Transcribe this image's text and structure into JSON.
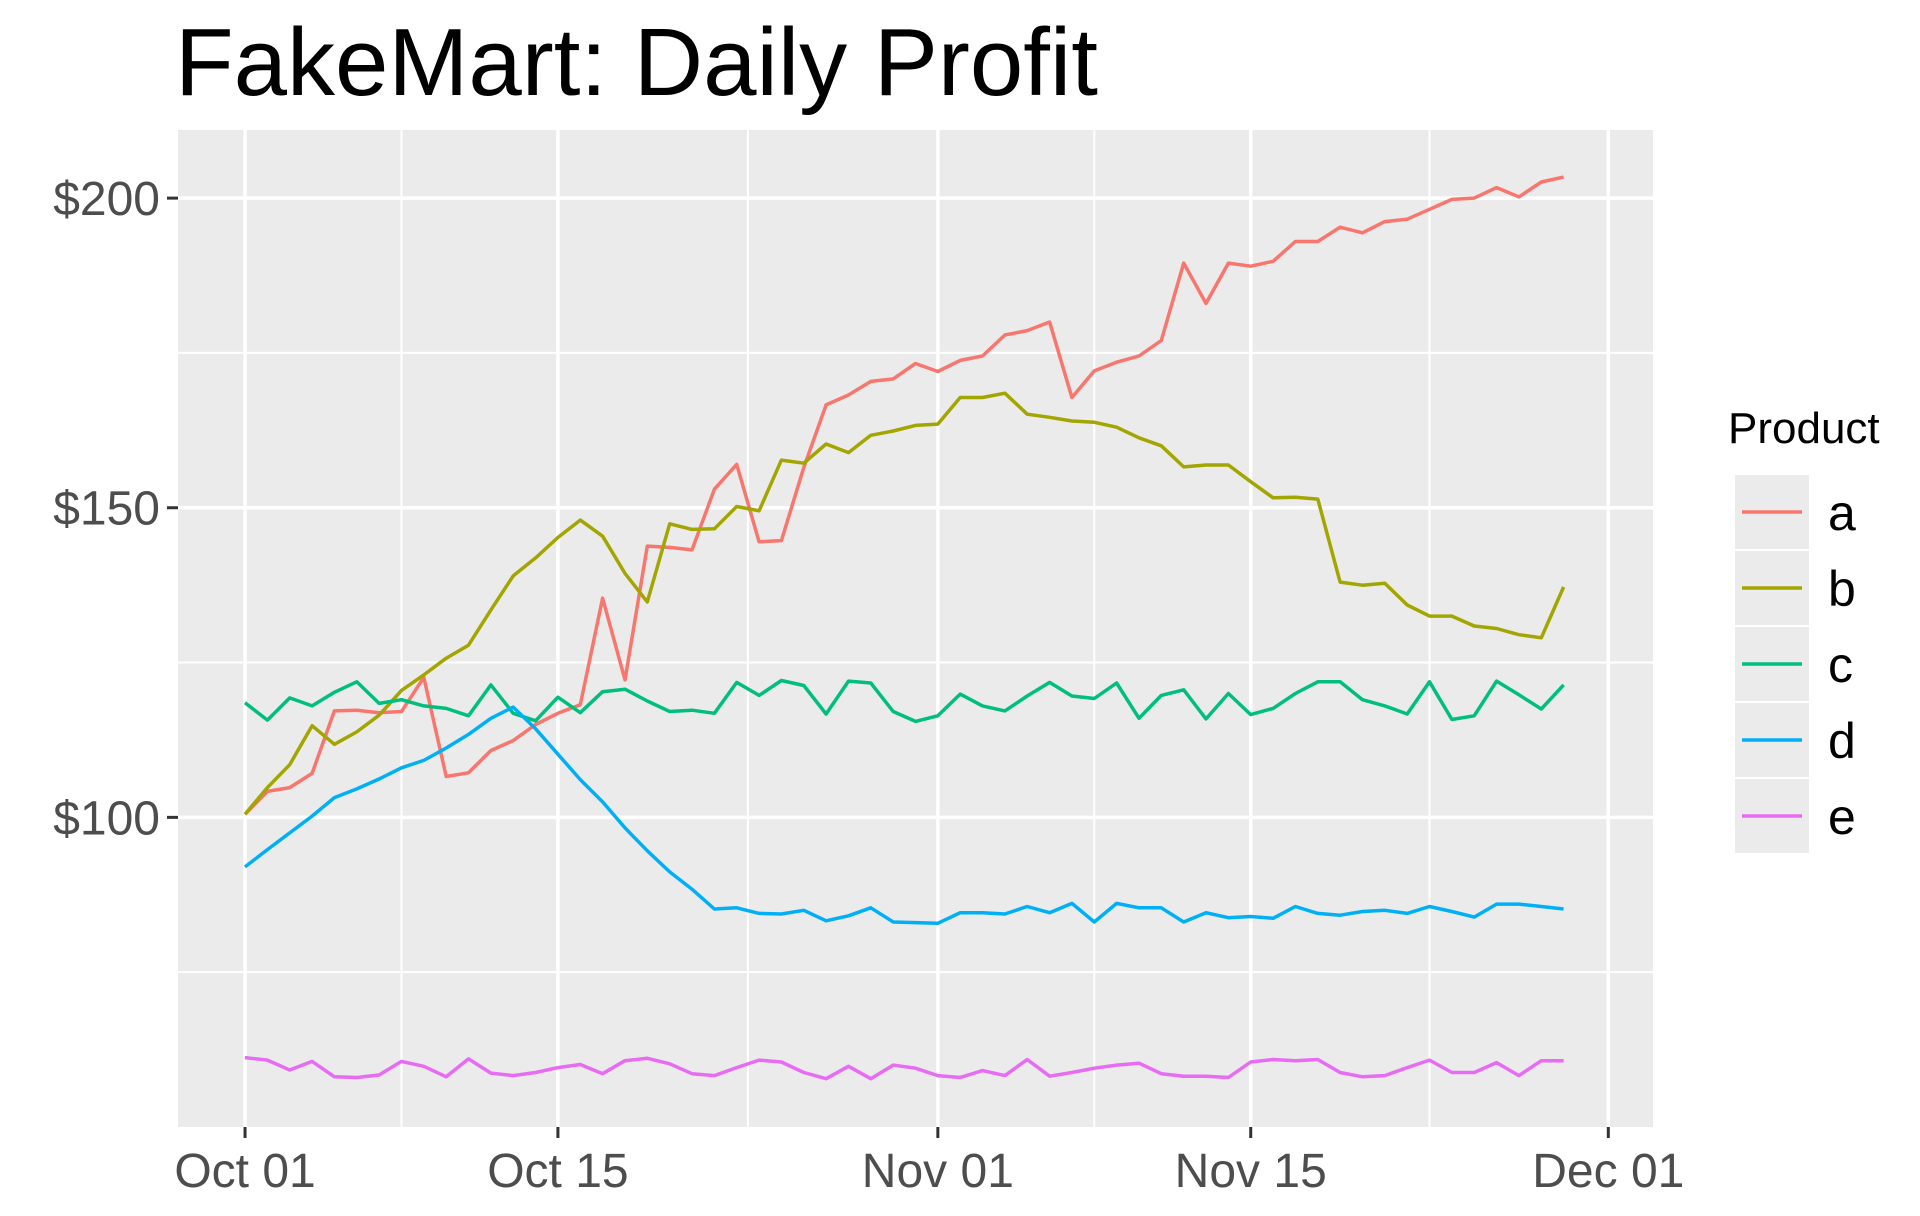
{
  "chart_data": {
    "type": "line",
    "title": "FakeMart: Daily Profit",
    "xlabel": "",
    "ylabel": "",
    "x_type": "date",
    "x_start": "2021-10-01",
    "xlim": [
      "2021-09-28",
      "2021-12-03"
    ],
    "ylim": [
      50,
      211
    ],
    "x_ticks": [
      {
        "date": "2021-10-01",
        "label": "Oct 01"
      },
      {
        "date": "2021-10-15",
        "label": "Oct 15"
      },
      {
        "date": "2021-11-01",
        "label": "Nov 01"
      },
      {
        "date": "2021-11-15",
        "label": "Nov 15"
      },
      {
        "date": "2021-12-01",
        "label": "Dec 01"
      }
    ],
    "y_ticks": [
      {
        "value": 100,
        "label": "$100"
      },
      {
        "value": 150,
        "label": "$150"
      },
      {
        "value": 200,
        "label": "$200"
      }
    ],
    "grid": true,
    "legend": {
      "title": "Product",
      "position": "right"
    },
    "series": [
      {
        "name": "a",
        "color": "#F8766D",
        "values": [
          100.5,
          104.2,
          104.8,
          107.1,
          117.2,
          117.3,
          116.9,
          117.1,
          122.6,
          106.6,
          107.2,
          110.8,
          112.4,
          115.0,
          116.8,
          118.2,
          135.4,
          122.2,
          143.8,
          143.6,
          143.2,
          153.0,
          157.0,
          144.5,
          144.7,
          156.5,
          166.6,
          168.2,
          170.4,
          170.8,
          173.3,
          172.0,
          173.8,
          174.5,
          177.9,
          178.6,
          180.0,
          167.8,
          172.1,
          173.5,
          174.5,
          177.0,
          189.5,
          183.0,
          189.5,
          189.0,
          189.8,
          193.0,
          193.0,
          195.3,
          194.4,
          196.2,
          196.6,
          198.2,
          199.8,
          200.0,
          201.7,
          200.2,
          202.6,
          203.4
        ]
      },
      {
        "name": "b",
        "color": "#A3A500",
        "values": [
          100.5,
          104.8,
          108.5,
          114.8,
          111.8,
          113.8,
          116.5,
          120.5,
          123.0,
          125.7,
          127.8,
          133.5,
          139.0,
          141.9,
          145.2,
          148.0,
          145.4,
          139.4,
          134.8,
          147.4,
          146.5,
          146.6,
          150.2,
          149.5,
          157.7,
          157.2,
          160.3,
          158.9,
          161.7,
          162.4,
          163.3,
          163.5,
          167.8,
          167.8,
          168.5,
          165.1,
          164.6,
          164.0,
          163.8,
          163.0,
          161.3,
          160.0,
          156.6,
          156.9,
          156.9,
          154.2,
          151.6,
          151.7,
          151.4,
          138.0,
          137.5,
          137.8,
          134.3,
          132.5,
          132.5,
          130.9,
          130.5,
          129.5,
          129.0,
          137.2
        ]
      },
      {
        "name": "c",
        "color": "#00BF7D",
        "values": [
          118.5,
          115.7,
          119.3,
          118.0,
          120.2,
          121.9,
          118.4,
          119.0,
          118.0,
          117.6,
          116.4,
          121.4,
          116.8,
          115.6,
          119.4,
          116.9,
          120.3,
          120.7,
          118.8,
          117.1,
          117.3,
          116.8,
          121.8,
          119.7,
          122.1,
          121.3,
          116.7,
          122.0,
          121.7,
          117.1,
          115.5,
          116.4,
          119.9,
          118.0,
          117.2,
          119.6,
          121.8,
          119.6,
          119.2,
          121.7,
          116.0,
          119.7,
          120.6,
          115.9,
          120.0,
          116.6,
          117.6,
          120.0,
          121.9,
          121.9,
          119.0,
          118.0,
          116.7,
          121.9,
          115.8,
          116.4,
          122.0,
          119.8,
          117.5,
          121.4
        ]
      },
      {
        "name": "d",
        "color": "#00B0F6",
        "values": [
          92.0,
          94.8,
          97.5,
          100.2,
          103.2,
          104.6,
          106.2,
          108.0,
          109.2,
          111.2,
          113.4,
          116.0,
          117.8,
          114.3,
          110.2,
          106.1,
          102.5,
          98.3,
          94.6,
          91.2,
          88.4,
          85.2,
          85.4,
          84.5,
          84.4,
          85.0,
          83.3,
          84.1,
          85.4,
          83.1,
          83.0,
          82.9,
          84.6,
          84.6,
          84.4,
          85.6,
          84.6,
          86.1,
          83.1,
          86.1,
          85.4,
          85.4,
          83.1,
          84.6,
          83.8,
          84.0,
          83.7,
          85.6,
          84.5,
          84.2,
          84.8,
          85.0,
          84.5,
          85.6,
          84.8,
          83.9,
          86.0,
          86.0,
          85.6,
          85.2
        ]
      },
      {
        "name": "e",
        "color": "#E76BF3",
        "values": [
          61.2,
          60.8,
          59.2,
          60.6,
          58.1,
          58.0,
          58.4,
          60.6,
          59.8,
          58.1,
          61.0,
          58.7,
          58.3,
          58.8,
          59.6,
          60.1,
          58.6,
          60.7,
          61.1,
          60.2,
          58.6,
          58.3,
          59.6,
          60.8,
          60.5,
          58.8,
          57.8,
          59.8,
          57.8,
          60.0,
          59.5,
          58.3,
          58.0,
          59.1,
          58.3,
          60.9,
          58.2,
          58.8,
          59.5,
          60.0,
          60.3,
          58.6,
          58.2,
          58.2,
          58.0,
          60.5,
          60.9,
          60.7,
          60.9,
          58.8,
          58.1,
          58.3,
          59.6,
          60.8,
          58.8,
          58.8,
          60.4,
          58.3,
          60.7,
          60.7
        ]
      }
    ]
  }
}
